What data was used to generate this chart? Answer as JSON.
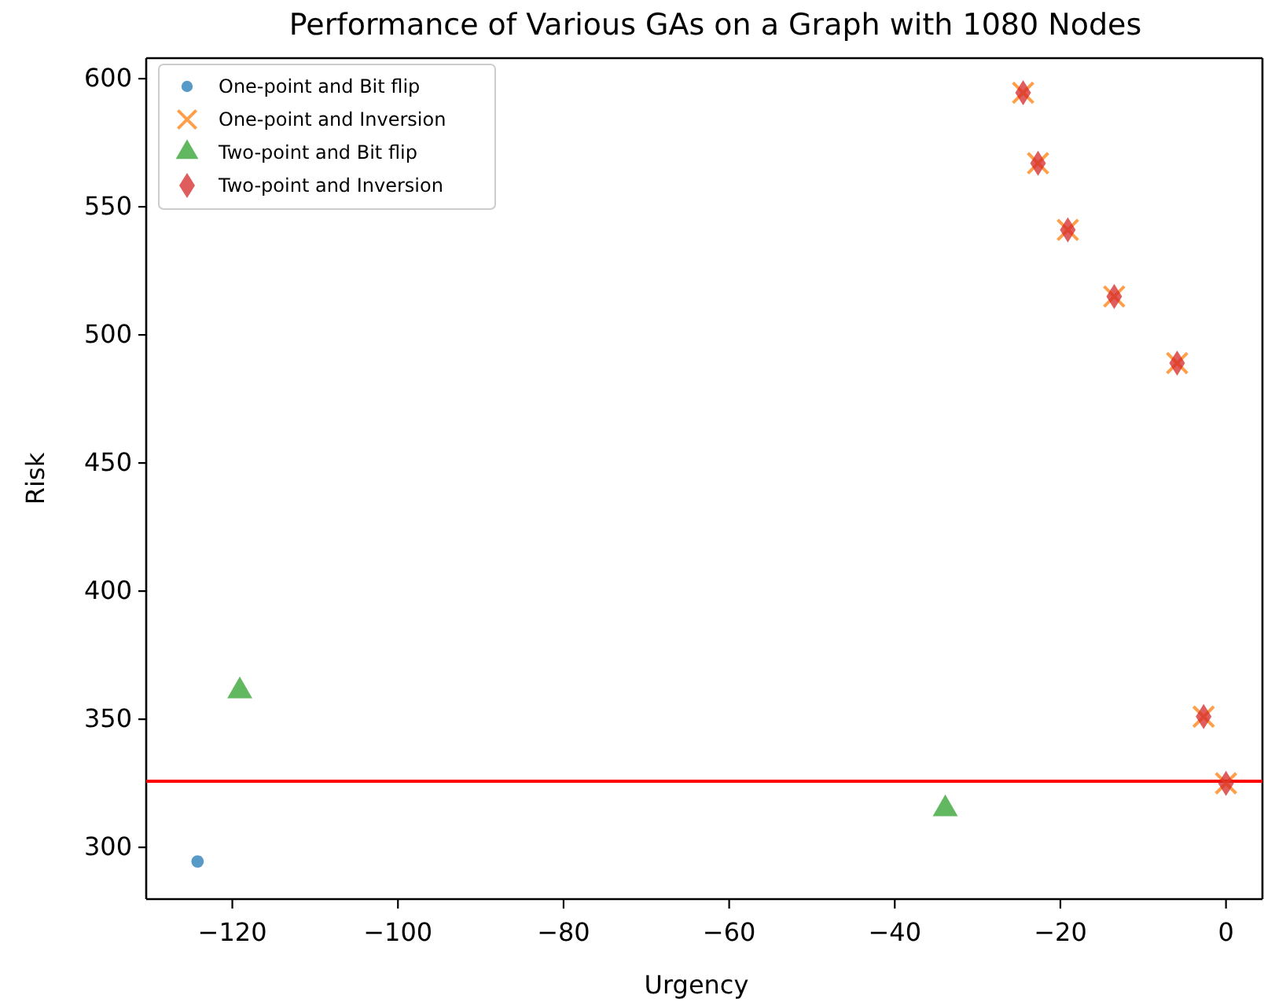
{
  "chart_data": {
    "type": "scatter",
    "title": "Performance of Various GAs on a Graph with 1080 Nodes",
    "xlabel": "Urgency",
    "ylabel": "Risk",
    "xlim": [
      -130.4,
      4.4
    ],
    "ylim": [
      279.8,
      608
    ],
    "xticks": [
      {
        "value": -120,
        "label": "−120"
      },
      {
        "value": -100,
        "label": "−100"
      },
      {
        "value": -80,
        "label": "−80"
      },
      {
        "value": -60,
        "label": "−60"
      },
      {
        "value": -40,
        "label": "−40"
      },
      {
        "value": -20,
        "label": "−20"
      },
      0
    ],
    "yticks": [
      300,
      350,
      400,
      450,
      500,
      550,
      600
    ],
    "legend": "top left",
    "grid": false,
    "series": [
      {
        "name": "One-point and Bit flip",
        "color": "#1f77b4",
        "marker": "circle",
        "x": [
          -124.2
        ],
        "values": [
          294.5
        ]
      },
      {
        "name": "One-point and Inversion",
        "color": "#ff7f0e",
        "marker": "cross",
        "x": [
          -24.5,
          -22.7,
          -19.1,
          -13.5,
          -5.9,
          -2.7,
          0
        ],
        "values": [
          594.5,
          567,
          541,
          515,
          489,
          351,
          325
        ]
      },
      {
        "name": "Two-point and Bit flip",
        "color": "#2ca02c",
        "marker": "triangle",
        "x": [
          -119.1,
          -33.9
        ],
        "values": [
          361,
          315
        ]
      },
      {
        "name": "Two-point and Inversion",
        "color": "#d62728",
        "marker": "diamond",
        "x": [
          -24.5,
          -22.7,
          -19.1,
          -13.5,
          -5.9,
          -2.7,
          0
        ],
        "values": [
          594.5,
          567,
          541,
          515,
          489,
          351,
          325
        ]
      }
    ],
    "ref_lines": [
      {
        "axis": "y",
        "value": 325.8,
        "color": "#ff0000",
        "line_style": "solid"
      }
    ]
  }
}
